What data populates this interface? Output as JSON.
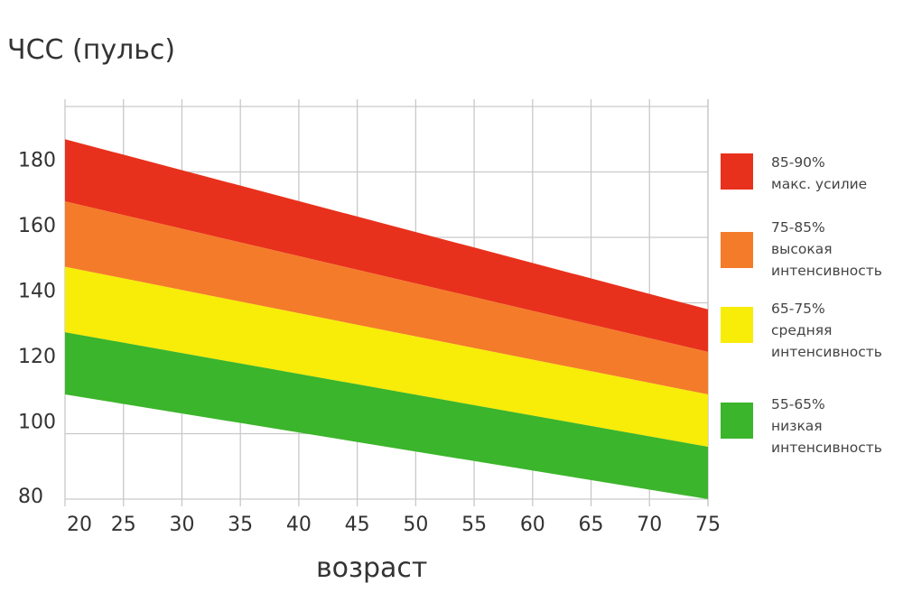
{
  "chart_data": {
    "type": "area",
    "title": "",
    "ylabel": "ЧСС (пульс)",
    "xlabel": "возраст",
    "xlim": [
      20,
      75
    ],
    "ylim": [
      80,
      200
    ],
    "x_ticks": [
      20,
      25,
      30,
      35,
      40,
      45,
      50,
      55,
      60,
      65,
      70,
      75
    ],
    "y_ticks": [
      80,
      100,
      120,
      140,
      160,
      180
    ],
    "grid": true,
    "legend_position": "right",
    "x": [
      20,
      75
    ],
    "boundaries": [
      {
        "name": "90%",
        "values": [
          190,
          138
        ]
      },
      {
        "name": "85%",
        "values": [
          171,
          125
        ]
      },
      {
        "name": "75%",
        "values": [
          151,
          112
        ]
      },
      {
        "name": "65%",
        "values": [
          131,
          96
        ]
      },
      {
        "name": "55%",
        "values": [
          112,
          80
        ]
      }
    ],
    "series": [
      {
        "name": "85-90% макс. усилие",
        "color": "#e8311c",
        "upper": [
          190,
          138
        ],
        "lower": [
          171,
          125
        ]
      },
      {
        "name": "75-85% высокая интенсивность",
        "color": "#f47b2a",
        "upper": [
          171,
          125
        ],
        "lower": [
          151,
          112
        ]
      },
      {
        "name": "65-75% средняя интенсивность",
        "color": "#f8ec09",
        "upper": [
          151,
          112
        ],
        "lower": [
          131,
          96
        ]
      },
      {
        "name": "55-65% низкая интенсивность",
        "color": "#3bb52b",
        "upper": [
          131,
          96
        ],
        "lower": [
          112,
          80
        ]
      }
    ]
  },
  "legend": [
    {
      "color": "#e8311c",
      "lines": [
        "85-90%",
        "макс. усилие"
      ]
    },
    {
      "color": "#f47b2a",
      "lines": [
        "75-85%",
        "высокая",
        "интенсивность"
      ]
    },
    {
      "color": "#f8ec09",
      "lines": [
        "65-75%",
        "средняя",
        "интенсивность"
      ]
    },
    {
      "color": "#3bb52b",
      "lines": [
        "55-65%",
        "низкая",
        "интенсивность"
      ]
    }
  ]
}
